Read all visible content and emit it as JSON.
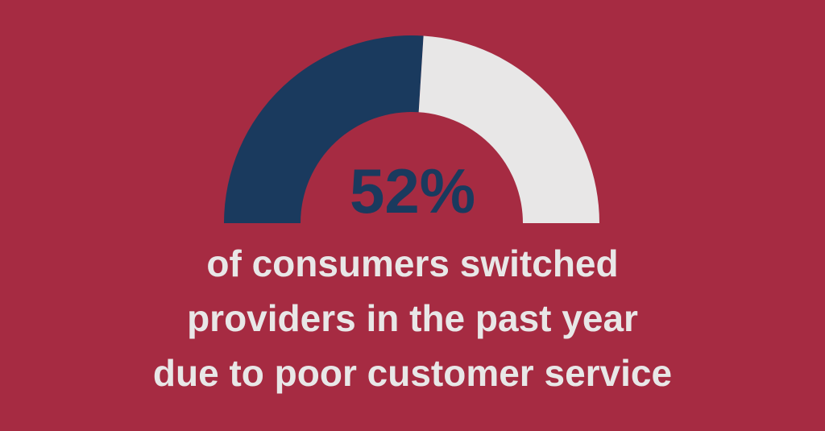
{
  "infographic": {
    "background_color": "#a62b42",
    "gauge": {
      "filled_color": "#1a3a5e",
      "empty_color": "#e8e7e7",
      "value_label": "52%"
    },
    "caption": {
      "color": "#e8e7e7",
      "lines": [
        "of consumers switched",
        "providers in the past year",
        "due to poor customer service"
      ]
    }
  },
  "chart_data": {
    "type": "gauge",
    "subtype": "semicircle-donut",
    "value": 52,
    "max": 100,
    "label": "52%",
    "title": "of consumers switched providers in the past year due to poor customer service",
    "direction": "left-to-right",
    "segments": [
      {
        "name": "switched-providers",
        "value": 52,
        "color": "#1a3a5e"
      },
      {
        "name": "remainder",
        "value": 48,
        "color": "#e8e7e7"
      }
    ],
    "legend": "none",
    "grid": false
  }
}
